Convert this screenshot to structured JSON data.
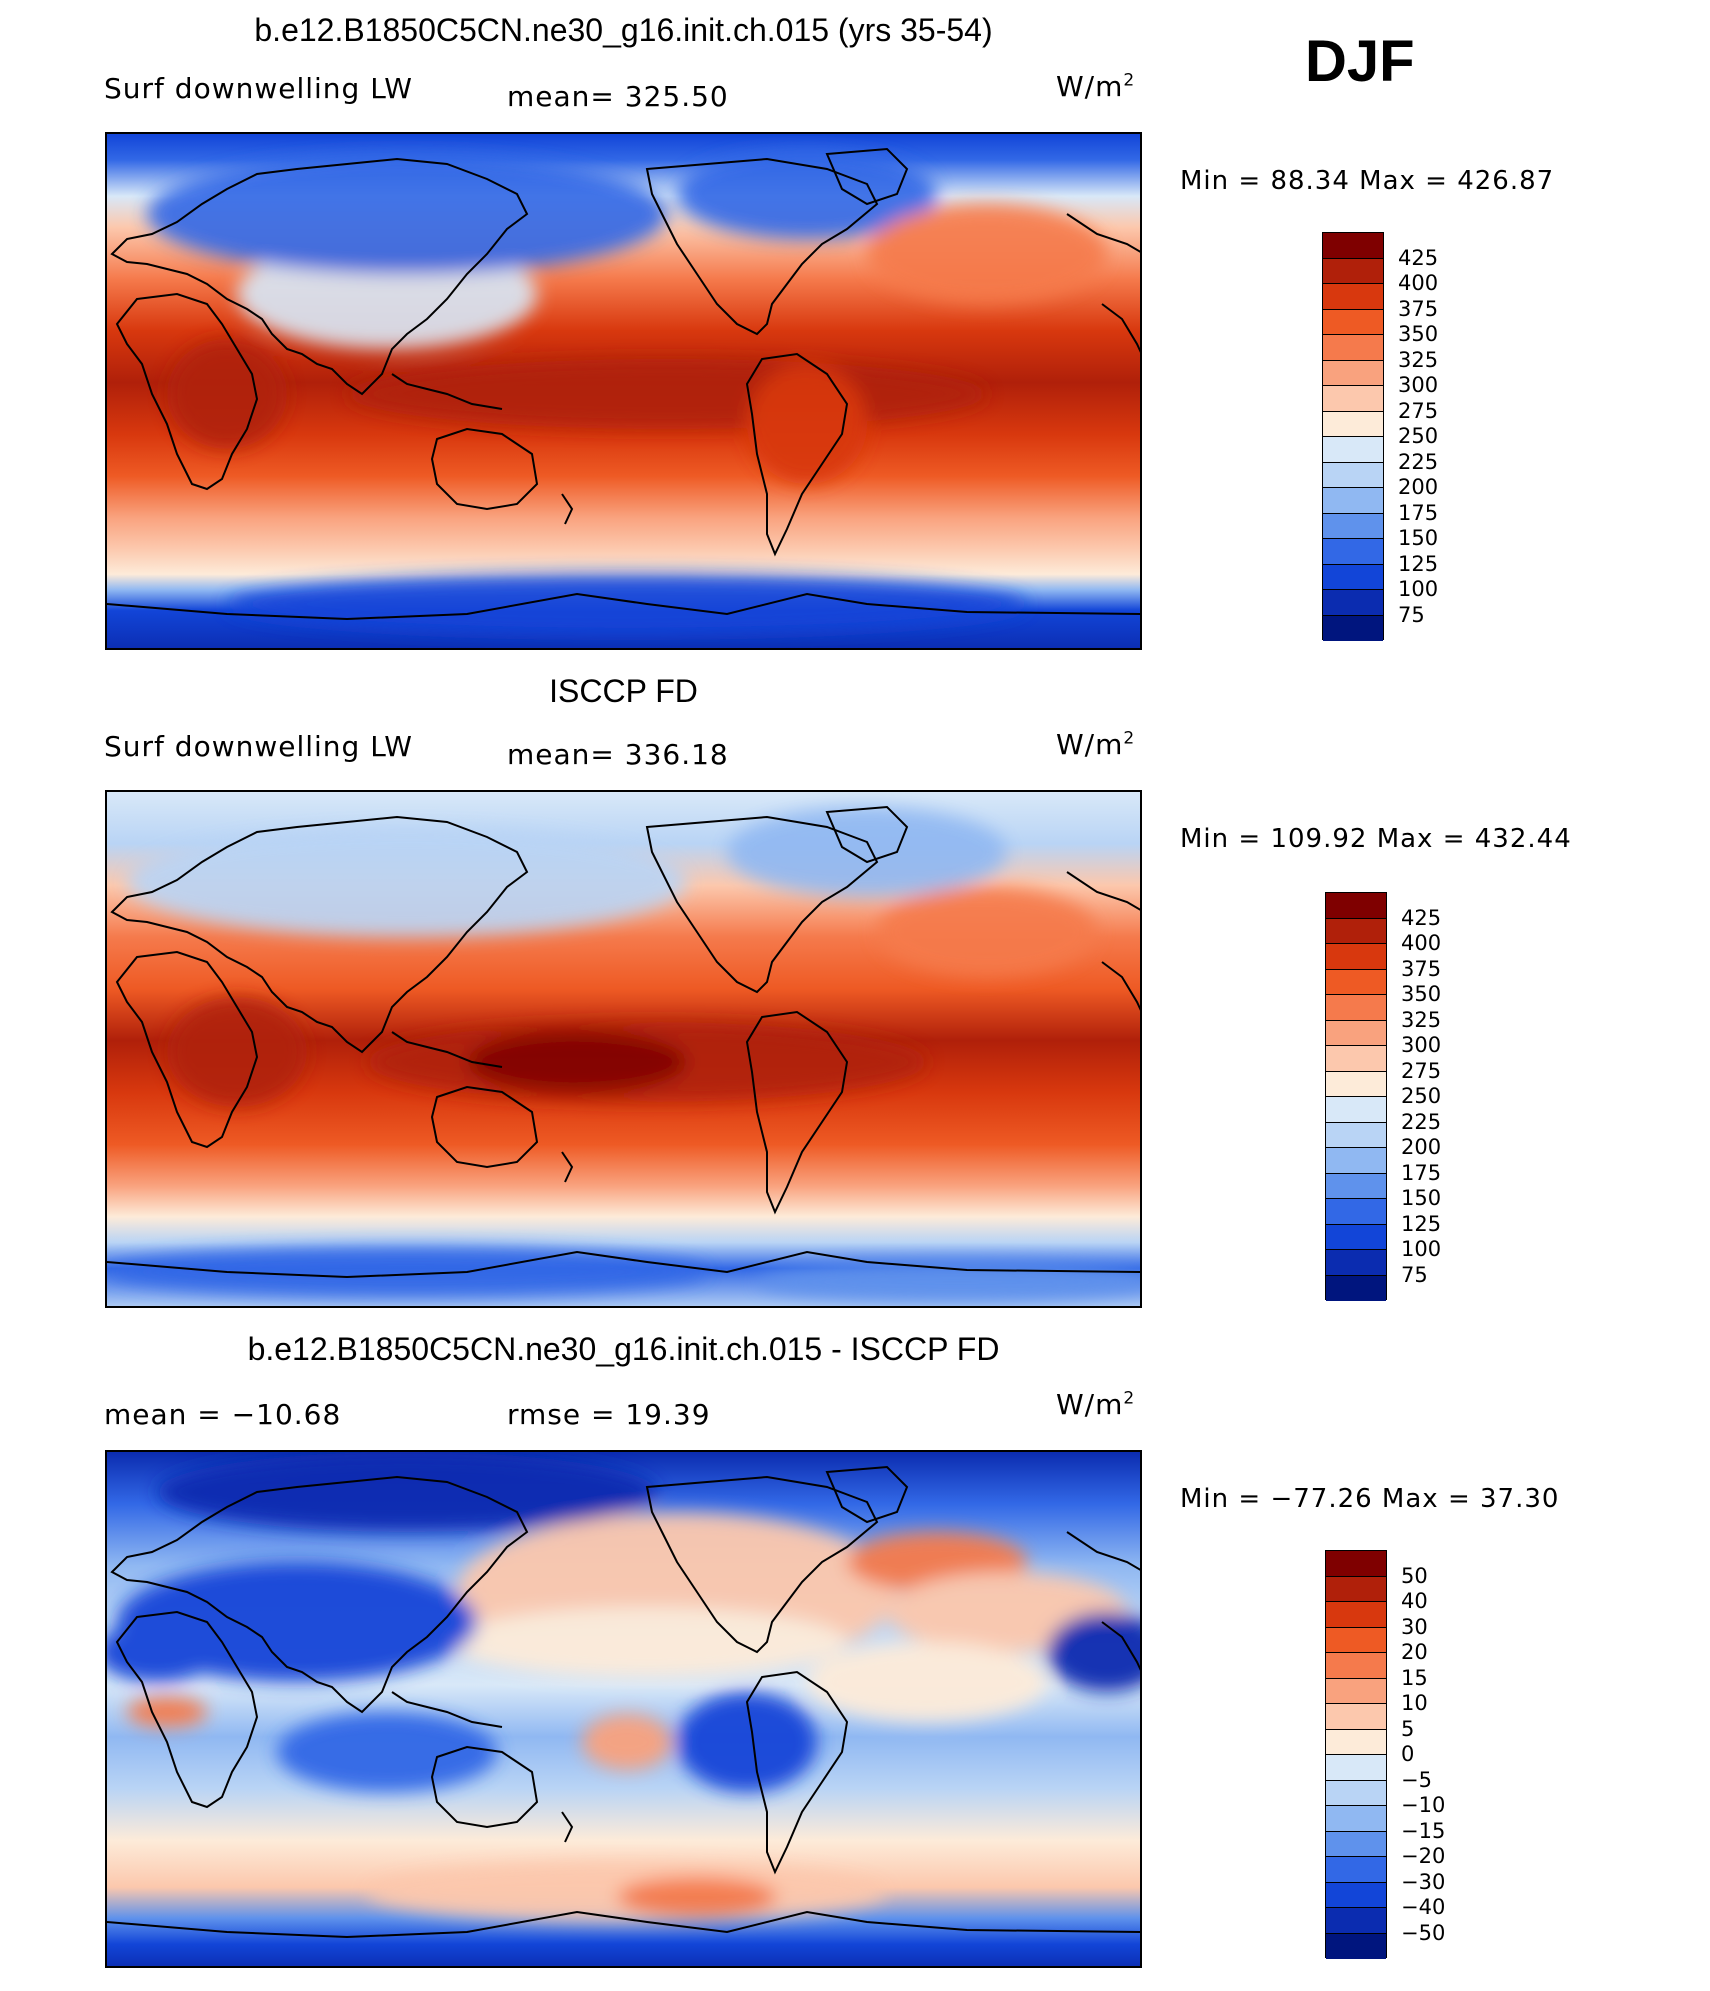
{
  "season": "DJF",
  "panels": [
    {
      "id": "model",
      "title": "b.e12.B1850C5CN.ne30_g16.init.ch.015 (yrs 35-54)",
      "left_label": "Surf downwelling LW",
      "center_label": "mean= 325.50",
      "units": "W/m",
      "units_sup": "2",
      "minmax": "Min =  88.34 Max = 426.87",
      "colorbar_labels": [
        "425",
        "400",
        "375",
        "350",
        "325",
        "300",
        "275",
        "250",
        "225",
        "200",
        "175",
        "150",
        "125",
        "100",
        "75"
      ]
    },
    {
      "id": "obs",
      "title": "ISCCP FD",
      "left_label": "Surf downwelling LW",
      "center_label": "mean= 336.18",
      "units": "W/m",
      "units_sup": "2",
      "minmax": "Min = 109.92 Max = 432.44",
      "colorbar_labels": [
        "425",
        "400",
        "375",
        "350",
        "325",
        "300",
        "275",
        "250",
        "225",
        "200",
        "175",
        "150",
        "125",
        "100",
        "75"
      ]
    },
    {
      "id": "diff",
      "title": "b.e12.B1850C5CN.ne30_g16.init.ch.015 - ISCCP FD",
      "left_label": "mean = −10.68",
      "center_label": "rmse =   19.39",
      "units": "W/m",
      "units_sup": "2",
      "minmax": "Min = −77.26 Max =   37.30",
      "colorbar_labels": [
        "50",
        "40",
        "30",
        "20",
        "15",
        "10",
        "5",
        "0",
        "−5",
        "−10",
        "−15",
        "−20",
        "−30",
        "−40",
        "−50"
      ]
    }
  ],
  "palette": [
    "#7f0000",
    "#b0200a",
    "#d8380e",
    "#ee5a24",
    "#f57a4c",
    "#f9a27e",
    "#fcc8ad",
    "#fdebd9",
    "#d8e8f8",
    "#b9d4f5",
    "#90b8f2",
    "#5f92ec",
    "#3268e6",
    "#1245d8",
    "#0b2cb0",
    "#00157e"
  ]
}
